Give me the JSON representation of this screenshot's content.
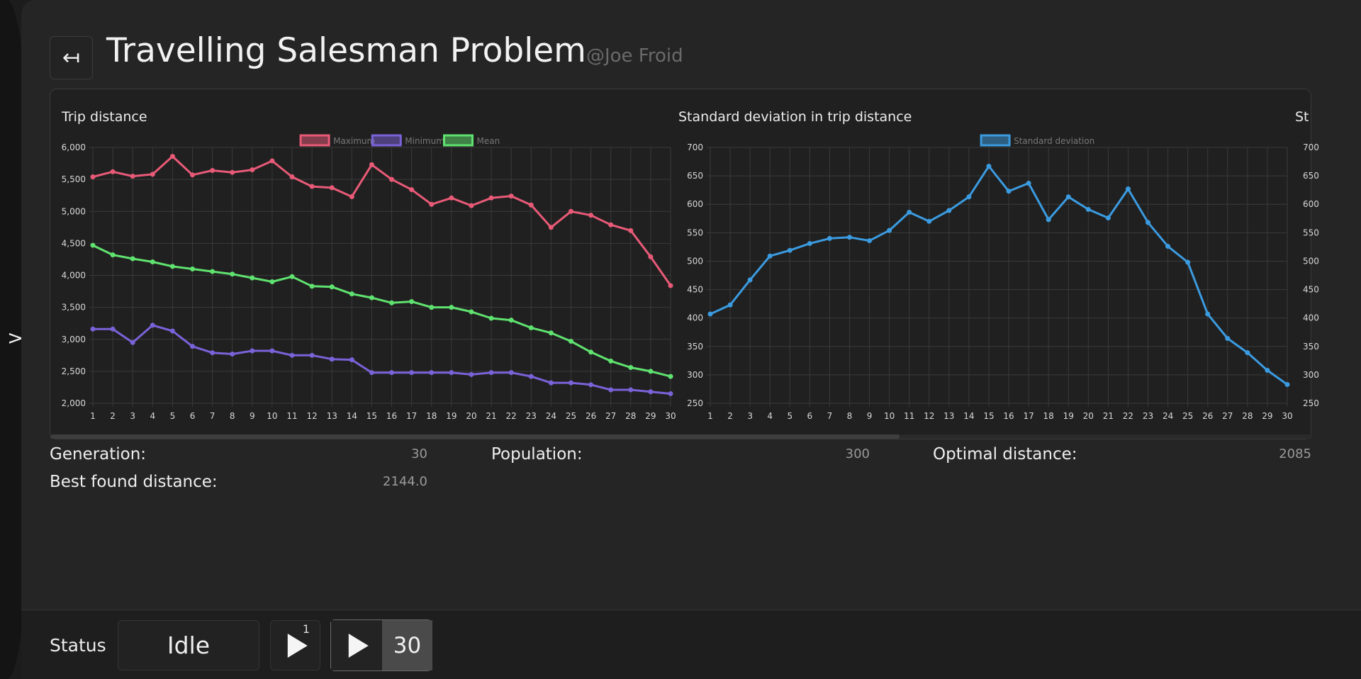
{
  "sidebar": {
    "toggle_glyph": ">"
  },
  "header": {
    "back_glyph": "↤",
    "title": "Travelling Salesman Problem",
    "author": "@Joe Froid"
  },
  "stats": {
    "generation_label": "Generation:",
    "generation_value": "30",
    "population_label": "Population:",
    "population_value": "300",
    "optimal_label": "Optimal distance:",
    "optimal_value": "2085",
    "best_label": "Best found distance:",
    "best_value": "2144.0"
  },
  "footer": {
    "status_label": "Status",
    "status_value": "Idle",
    "step_count": "1",
    "run_count": "30"
  },
  "colors": {
    "maximum": "#e85a77",
    "minimum": "#7a62d8",
    "mean": "#5fe26f",
    "stddev": "#3b9be0",
    "grid": "#3a3a3a",
    "text": "#d8d8d8",
    "legend_text": "#777777"
  },
  "chart_data": [
    {
      "type": "line",
      "title": "Trip distance",
      "x": [
        1,
        2,
        3,
        4,
        5,
        6,
        7,
        8,
        9,
        10,
        11,
        12,
        13,
        14,
        15,
        16,
        17,
        18,
        19,
        20,
        21,
        22,
        23,
        24,
        25,
        26,
        27,
        28,
        29,
        30
      ],
      "ylim": [
        2000,
        6000
      ],
      "yticks": [
        2000,
        2500,
        3000,
        3500,
        4000,
        4500,
        5000,
        5500,
        6000
      ],
      "ytick_labels": [
        "2,000",
        "2,500",
        "3,000",
        "3,500",
        "4,000",
        "4,500",
        "5,000",
        "5,500",
        "6,000"
      ],
      "legend": "top-center",
      "grid": true,
      "series": [
        {
          "name": "Maximum",
          "color": "#e85a77",
          "values": [
            5540,
            5620,
            5550,
            5580,
            5860,
            5570,
            5640,
            5610,
            5650,
            5790,
            5540,
            5390,
            5370,
            5230,
            5730,
            5500,
            5340,
            5110,
            5210,
            5090,
            5210,
            5240,
            5100,
            4750,
            5000,
            4940,
            4790,
            4700,
            4290,
            3840
          ]
        },
        {
          "name": "Minimum",
          "color": "#7a62d8",
          "values": [
            3160,
            3160,
            2950,
            3220,
            3130,
            2890,
            2790,
            2770,
            2820,
            2820,
            2750,
            2750,
            2690,
            2680,
            2480,
            2480,
            2480,
            2480,
            2480,
            2450,
            2480,
            2480,
            2420,
            2320,
            2320,
            2290,
            2210,
            2210,
            2180,
            2150
          ]
        },
        {
          "name": "Mean",
          "color": "#5fe26f",
          "values": [
            4470,
            4320,
            4260,
            4210,
            4140,
            4100,
            4060,
            4020,
            3960,
            3900,
            3980,
            3830,
            3820,
            3710,
            3650,
            3570,
            3590,
            3500,
            3500,
            3430,
            3330,
            3300,
            3180,
            3100,
            2970,
            2800,
            2660,
            2560,
            2500,
            2420
          ]
        }
      ]
    },
    {
      "type": "line",
      "title": "Standard deviation in trip distance",
      "x": [
        1,
        2,
        3,
        4,
        5,
        6,
        7,
        8,
        9,
        10,
        11,
        12,
        13,
        14,
        15,
        16,
        17,
        18,
        19,
        20,
        21,
        22,
        23,
        24,
        25,
        26,
        27,
        28,
        29,
        30
      ],
      "ylim": [
        250,
        700
      ],
      "yticks": [
        250,
        300,
        350,
        400,
        450,
        500,
        550,
        600,
        650,
        700
      ],
      "legend": "top-center",
      "grid": true,
      "series": [
        {
          "name": "Standard deviation",
          "color": "#3b9be0",
          "values": [
            407,
            423,
            467,
            509,
            519,
            531,
            540,
            542,
            536,
            554,
            586,
            570,
            589,
            613,
            667,
            623,
            637,
            573,
            613,
            591,
            576,
            627,
            568,
            526,
            498,
            407,
            364,
            339,
            308,
            283
          ]
        }
      ]
    },
    {
      "type": "line",
      "title": "St",
      "yticks": [
        250,
        300,
        350,
        400,
        450,
        500,
        550,
        600,
        650,
        700
      ],
      "ytick_labels": [
        "250",
        "300",
        "350",
        "400",
        "450",
        "500",
        "550",
        "600",
        "650",
        "700"
      ]
    }
  ]
}
